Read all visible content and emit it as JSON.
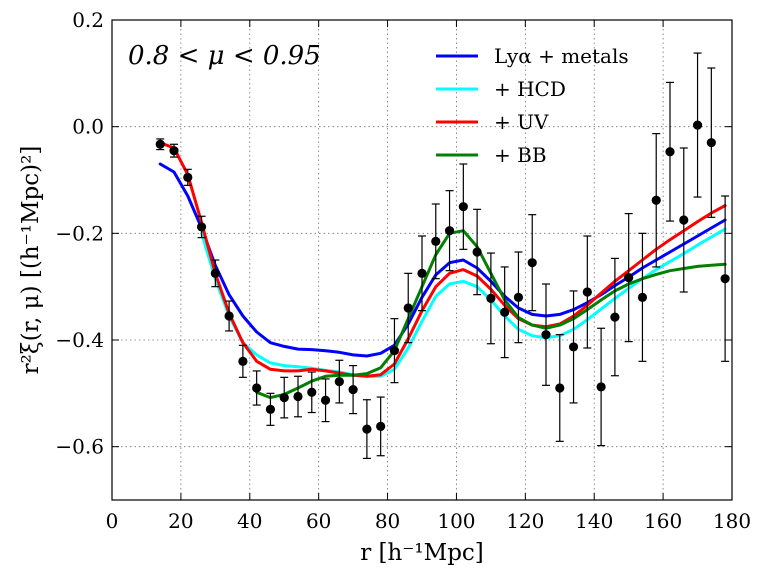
{
  "chart_data": {
    "type": "line",
    "annotation": "0.8 < μ < 0.95",
    "xlabel": "r [h⁻¹Mpc]",
    "ylabel": "r²ξ(r, μ) [(h⁻¹Mpc)²]",
    "xlim": [
      0,
      180
    ],
    "ylim": [
      -0.7,
      0.2
    ],
    "xticks": [
      0,
      20,
      40,
      60,
      80,
      100,
      120,
      140,
      160,
      180
    ],
    "xtick_labels": [
      "0",
      "20",
      "40",
      "60",
      "80",
      "100",
      "120",
      "140",
      "160",
      "180"
    ],
    "yticks": [
      0.2,
      0.0,
      -0.2,
      -0.4,
      -0.6
    ],
    "ytick_labels": [
      "0.2",
      "0.0",
      "−0.2",
      "−0.4",
      "−0.6"
    ],
    "grid": true,
    "legend_position": "top-right",
    "series": [
      {
        "name": "Lyα + metals",
        "color": "#0000ff",
        "x": [
          14,
          18,
          22,
          26,
          30,
          34,
          38,
          42,
          46,
          50,
          54,
          58,
          62,
          66,
          70,
          74,
          78,
          82,
          86,
          90,
          94,
          98,
          102,
          106,
          110,
          114,
          118,
          122,
          126,
          130,
          134,
          138,
          142,
          146,
          150,
          154,
          158,
          162,
          166,
          170,
          174,
          178
        ],
        "y": [
          -0.07,
          -0.085,
          -0.13,
          -0.19,
          -0.26,
          -0.315,
          -0.355,
          -0.385,
          -0.405,
          -0.412,
          -0.417,
          -0.418,
          -0.42,
          -0.423,
          -0.428,
          -0.43,
          -0.425,
          -0.41,
          -0.37,
          -0.32,
          -0.278,
          -0.255,
          -0.25,
          -0.265,
          -0.29,
          -0.318,
          -0.34,
          -0.352,
          -0.355,
          -0.352,
          -0.343,
          -0.33,
          -0.315,
          -0.298,
          -0.282,
          -0.265,
          -0.25,
          -0.235,
          -0.22,
          -0.205,
          -0.19,
          -0.175
        ]
      },
      {
        "name": "+ HCD",
        "color": "#00ffff",
        "x": [
          26,
          30,
          34,
          38,
          42,
          46,
          50,
          54,
          58,
          62,
          66,
          70,
          74,
          78,
          82,
          86,
          90,
          94,
          98,
          102,
          106,
          110,
          114,
          118,
          122,
          126,
          130,
          134,
          138,
          142,
          146,
          150,
          154,
          158,
          162,
          166,
          170,
          174,
          178
        ],
        "y": [
          -0.2,
          -0.285,
          -0.355,
          -0.405,
          -0.428,
          -0.443,
          -0.448,
          -0.45,
          -0.453,
          -0.457,
          -0.46,
          -0.465,
          -0.468,
          -0.468,
          -0.455,
          -0.415,
          -0.365,
          -0.318,
          -0.295,
          -0.29,
          -0.3,
          -0.325,
          -0.355,
          -0.38,
          -0.392,
          -0.396,
          -0.392,
          -0.38,
          -0.362,
          -0.342,
          -0.322,
          -0.303,
          -0.285,
          -0.268,
          -0.253,
          -0.238,
          -0.222,
          -0.207,
          -0.192
        ]
      },
      {
        "name": "+ UV",
        "color": "#ff0000",
        "x": [
          14,
          18,
          22,
          26,
          30,
          34,
          38,
          42,
          46,
          50,
          54,
          58,
          62,
          66,
          70,
          74,
          78,
          82,
          86,
          90,
          94,
          98,
          102,
          106,
          110,
          114,
          118,
          122,
          126,
          130,
          134,
          138,
          142,
          146,
          150,
          154,
          158,
          162,
          166,
          170,
          174,
          178
        ],
        "y": [
          -0.03,
          -0.04,
          -0.09,
          -0.18,
          -0.275,
          -0.35,
          -0.405,
          -0.44,
          -0.455,
          -0.458,
          -0.458,
          -0.455,
          -0.458,
          -0.462,
          -0.466,
          -0.468,
          -0.465,
          -0.445,
          -0.398,
          -0.345,
          -0.3,
          -0.275,
          -0.268,
          -0.28,
          -0.305,
          -0.335,
          -0.36,
          -0.372,
          -0.375,
          -0.37,
          -0.355,
          -0.335,
          -0.312,
          -0.29,
          -0.27,
          -0.25,
          -0.23,
          -0.212,
          -0.195,
          -0.178,
          -0.162,
          -0.148
        ]
      },
      {
        "name": "+ BB",
        "color": "#008000",
        "x": [
          42,
          46,
          50,
          54,
          58,
          62,
          66,
          70,
          74,
          78,
          82,
          86,
          90,
          94,
          98,
          102,
          106,
          110,
          114,
          118,
          122,
          126,
          130,
          134,
          138,
          142,
          146,
          150,
          154,
          158,
          162,
          166,
          170,
          174,
          178
        ],
        "y": [
          -0.498,
          -0.508,
          -0.502,
          -0.49,
          -0.477,
          -0.468,
          -0.466,
          -0.466,
          -0.463,
          -0.452,
          -0.42,
          -0.36,
          -0.3,
          -0.24,
          -0.2,
          -0.195,
          -0.225,
          -0.275,
          -0.325,
          -0.358,
          -0.372,
          -0.378,
          -0.372,
          -0.36,
          -0.343,
          -0.325,
          -0.308,
          -0.295,
          -0.285,
          -0.277,
          -0.27,
          -0.266,
          -0.262,
          -0.26,
          -0.258
        ]
      }
    ],
    "data_points": {
      "name": "measurements",
      "x": [
        14,
        18,
        22,
        26,
        30,
        34,
        38,
        42,
        46,
        50,
        54,
        58,
        62,
        66,
        70,
        74,
        78,
        82,
        86,
        90,
        94,
        98,
        102,
        106,
        110,
        114,
        118,
        122,
        126,
        130,
        134,
        138,
        142,
        146,
        150,
        154,
        158,
        162,
        166,
        170,
        174,
        178
      ],
      "y": [
        -0.033,
        -0.045,
        -0.095,
        -0.188,
        -0.275,
        -0.355,
        -0.44,
        -0.49,
        -0.53,
        -0.508,
        -0.506,
        -0.498,
        -0.513,
        -0.478,
        -0.493,
        -0.567,
        -0.562,
        -0.42,
        -0.34,
        -0.275,
        -0.215,
        -0.195,
        -0.15,
        -0.235,
        -0.322,
        -0.348,
        -0.32,
        -0.255,
        -0.39,
        -0.49,
        -0.413,
        -0.31,
        -0.488,
        -0.357,
        -0.283,
        -0.32,
        -0.138,
        -0.047,
        -0.175,
        0.003,
        -0.03,
        -0.285
      ],
      "err": [
        0.01,
        0.012,
        0.015,
        0.02,
        0.025,
        0.028,
        0.03,
        0.032,
        0.03,
        0.038,
        0.038,
        0.038,
        0.04,
        0.04,
        0.045,
        0.055,
        0.055,
        0.06,
        0.065,
        0.07,
        0.07,
        0.075,
        0.08,
        0.08,
        0.085,
        0.085,
        0.085,
        0.09,
        0.095,
        0.1,
        0.105,
        0.105,
        0.11,
        0.11,
        0.12,
        0.12,
        0.125,
        0.13,
        0.135,
        0.135,
        0.14,
        0.155
      ]
    }
  }
}
